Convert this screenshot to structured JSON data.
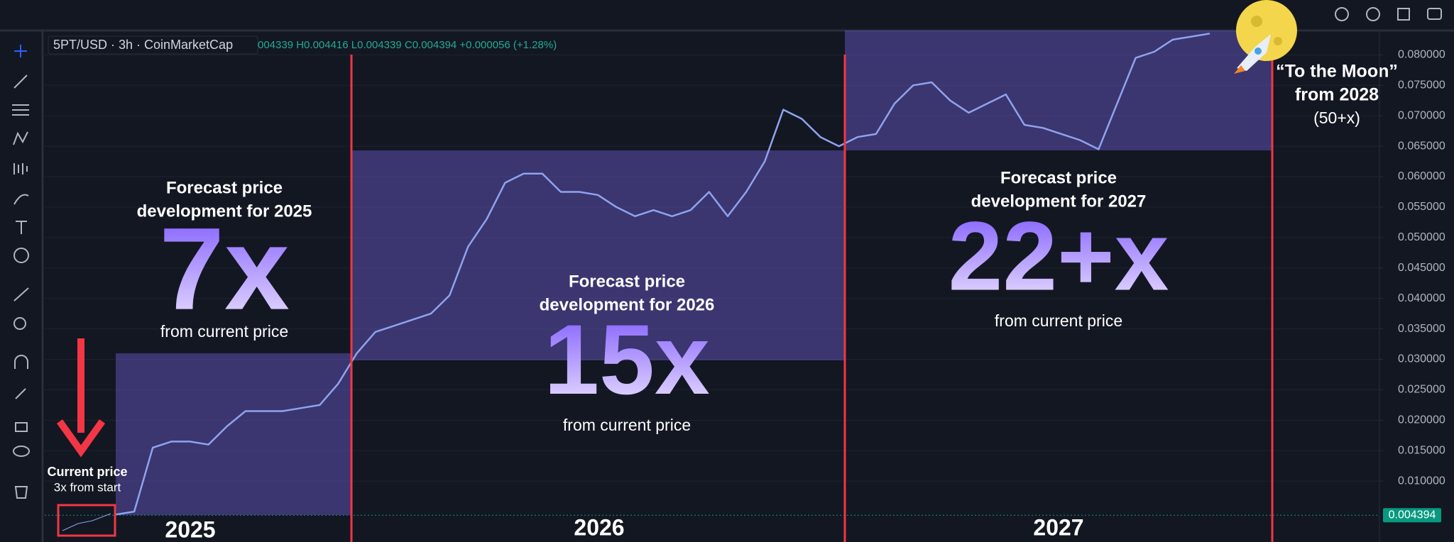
{
  "chart_data": {
    "type": "line",
    "symbol": "5PT/USD · 3h · CoinMarketCap",
    "ohlc": "004339 H0.004416 L0.004339 C0.004394 +0.000056 (+1.28%)",
    "color": "#8fa3ee",
    "values": [
      0.0045,
      0.005,
      0.0155,
      0.0165,
      0.0165,
      0.016,
      0.019,
      0.0215,
      0.0215,
      0.0215,
      0.022,
      0.0225,
      0.026,
      0.031,
      0.0345,
      0.0355,
      0.0365,
      0.0375,
      0.0405,
      0.0485,
      0.053,
      0.059,
      0.0605,
      0.0605,
      0.0575,
      0.0575,
      0.057,
      0.055,
      0.0535,
      0.0545,
      0.0535,
      0.0545,
      0.0575,
      0.0535,
      0.0575,
      0.0625,
      0.071,
      0.0695,
      0.0665,
      0.065,
      0.0665,
      0.067,
      0.072,
      0.075,
      0.0755,
      0.0725,
      0.0705,
      0.072,
      0.0735,
      0.0685,
      0.068,
      0.067,
      0.066,
      0.0645,
      0.072,
      0.0795,
      0.0805,
      0.0825,
      0.083,
      0.0835
    ],
    "ylim": [
      0,
      0.084
    ],
    "yticks": [
      {
        "value": 0.01,
        "label": "0.010000"
      },
      {
        "value": 0.015,
        "label": "0.015000"
      },
      {
        "value": 0.02,
        "label": "0.020000"
      },
      {
        "value": 0.025,
        "label": "0.025000"
      },
      {
        "value": 0.03,
        "label": "0.030000"
      },
      {
        "value": 0.035,
        "label": "0.035000"
      },
      {
        "value": 0.04,
        "label": "0.040000"
      },
      {
        "value": 0.045,
        "label": "0.045000"
      },
      {
        "value": 0.05,
        "label": "0.050000"
      },
      {
        "value": 0.055,
        "label": "0.055000"
      },
      {
        "value": 0.06,
        "label": "0.060000"
      },
      {
        "value": 0.065,
        "label": "0.065000"
      },
      {
        "value": 0.07,
        "label": "0.070000"
      },
      {
        "value": 0.075,
        "label": "0.075000"
      },
      {
        "value": 0.08,
        "label": "0.080000"
      }
    ],
    "grid": true,
    "last_price": 0.004394,
    "current_price_note": [
      "Current price",
      "3x from start"
    ],
    "forecasts": [
      {
        "heading": [
          "Forecast price",
          "development for 2025"
        ],
        "multiple": "7x",
        "note": "from current price",
        "year": "2025"
      },
      {
        "heading": [
          "Forecast price",
          "development for 2026"
        ],
        "multiple": "15x",
        "note": "from current price",
        "year": "2026"
      },
      {
        "heading": [
          "Forecast price",
          "development for 2027"
        ],
        "multiple": "22+x",
        "note": "from current price",
        "year": "2027"
      }
    ],
    "moon_note": [
      "“To the Moon”",
      "from 2028",
      "(50+x)"
    ]
  }
}
